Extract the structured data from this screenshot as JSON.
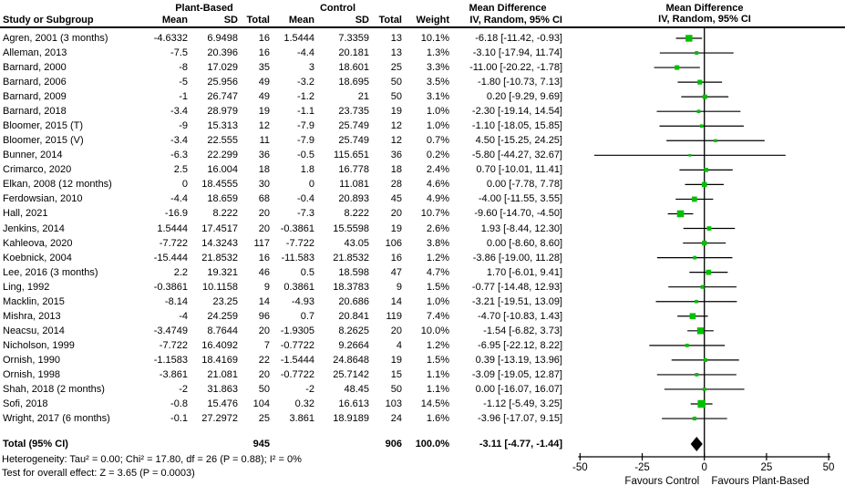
{
  "header": {
    "col_study": "Study or Subgroup",
    "group1": "Plant-Based",
    "group2": "Control",
    "col_mean": "Mean",
    "col_sd": "SD",
    "col_total": "Total",
    "col_weight": "Weight",
    "md_title": "Mean Difference",
    "md_subtitle": "IV, Random, 95% CI"
  },
  "chart_data": {
    "type": "forest",
    "title": "Mean Difference",
    "method": "IV, Random, 95% CI",
    "axis": {
      "min": -50,
      "max": 50,
      "ticks": [
        -50,
        -25,
        0,
        25,
        50
      ],
      "label_left": "Favours Control",
      "label_right": "Favours Plant-Based"
    },
    "colors": {
      "marker": "#00c000",
      "diamond": "#000000",
      "line": "#000000"
    },
    "studies": [
      {
        "study": "Agren, 2001 (3 months)",
        "pb_mean": "-4.6332",
        "pb_sd": "6.9498",
        "pb_total": "16",
        "c_mean": "1.5444",
        "c_sd": "7.3359",
        "c_total": "13",
        "weight": "10.1%",
        "ci_text": "-6.18 [-11.42, -0.93]",
        "est": -6.18,
        "lo": -11.42,
        "hi": -0.93,
        "w": 10.1
      },
      {
        "study": "Alleman, 2013",
        "pb_mean": "-7.5",
        "pb_sd": "20.396",
        "pb_total": "16",
        "c_mean": "-4.4",
        "c_sd": "20.181",
        "c_total": "13",
        "weight": "1.3%",
        "ci_text": "-3.10 [-17.94, 11.74]",
        "est": -3.1,
        "lo": -17.94,
        "hi": 11.74,
        "w": 1.3
      },
      {
        "study": "Barnard, 2000",
        "pb_mean": "-8",
        "pb_sd": "17.029",
        "pb_total": "35",
        "c_mean": "3",
        "c_sd": "18.601",
        "c_total": "25",
        "weight": "3.3%",
        "ci_text": "-11.00 [-20.22, -1.78]",
        "est": -11.0,
        "lo": -20.22,
        "hi": -1.78,
        "w": 3.3
      },
      {
        "study": "Barnard, 2006",
        "pb_mean": "-5",
        "pb_sd": "25.956",
        "pb_total": "49",
        "c_mean": "-3.2",
        "c_sd": "18.695",
        "c_total": "50",
        "weight": "3.5%",
        "ci_text": "-1.80 [-10.73, 7.13]",
        "est": -1.8,
        "lo": -10.73,
        "hi": 7.13,
        "w": 3.5
      },
      {
        "study": "Barnard, 2009",
        "pb_mean": "-1",
        "pb_sd": "26.747",
        "pb_total": "49",
        "c_mean": "-1.2",
        "c_sd": "21",
        "c_total": "50",
        "weight": "3.1%",
        "ci_text": "0.20 [-9.29, 9.69]",
        "est": 0.2,
        "lo": -9.29,
        "hi": 9.69,
        "w": 3.1
      },
      {
        "study": "Barnard, 2018",
        "pb_mean": "-3.4",
        "pb_sd": "28.979",
        "pb_total": "19",
        "c_mean": "-1.1",
        "c_sd": "23.735",
        "c_total": "19",
        "weight": "1.0%",
        "ci_text": "-2.30 [-19.14, 14.54]",
        "est": -2.3,
        "lo": -19.14,
        "hi": 14.54,
        "w": 1.0
      },
      {
        "study": "Bloomer, 2015 (T)",
        "pb_mean": "-9",
        "pb_sd": "15.313",
        "pb_total": "12",
        "c_mean": "-7.9",
        "c_sd": "25.749",
        "c_total": "12",
        "weight": "1.0%",
        "ci_text": "-1.10 [-18.05, 15.85]",
        "est": -1.1,
        "lo": -18.05,
        "hi": 15.85,
        "w": 1.0
      },
      {
        "study": "Bloomer, 2015 (V)",
        "pb_mean": "-3.4",
        "pb_sd": "22.555",
        "pb_total": "11",
        "c_mean": "-7.9",
        "c_sd": "25.749",
        "c_total": "12",
        "weight": "0.7%",
        "ci_text": "4.50 [-15.25, 24.25]",
        "est": 4.5,
        "lo": -15.25,
        "hi": 24.25,
        "w": 0.7
      },
      {
        "study": "Bunner, 2014",
        "pb_mean": "-6.3",
        "pb_sd": "22.299",
        "pb_total": "36",
        "c_mean": "-0.5",
        "c_sd": "115.651",
        "c_total": "36",
        "weight": "0.2%",
        "ci_text": "-5.80 [-44.27, 32.67]",
        "est": -5.8,
        "lo": -44.27,
        "hi": 32.67,
        "w": 0.2
      },
      {
        "study": "Crimarco, 2020",
        "pb_mean": "2.5",
        "pb_sd": "16.004",
        "pb_total": "18",
        "c_mean": "1.8",
        "c_sd": "16.778",
        "c_total": "18",
        "weight": "2.4%",
        "ci_text": "0.70 [-10.01, 11.41]",
        "est": 0.7,
        "lo": -10.01,
        "hi": 11.41,
        "w": 2.4
      },
      {
        "study": "Elkan, 2008 (12 months)",
        "pb_mean": "0",
        "pb_sd": "18.4555",
        "pb_total": "30",
        "c_mean": "0",
        "c_sd": "11.081",
        "c_total": "28",
        "weight": "4.6%",
        "ci_text": "0.00 [-7.78, 7.78]",
        "est": 0.0,
        "lo": -7.78,
        "hi": 7.78,
        "w": 4.6
      },
      {
        "study": "Ferdowsian, 2010",
        "pb_mean": "-4.4",
        "pb_sd": "18.659",
        "pb_total": "68",
        "c_mean": "-0.4",
        "c_sd": "20.893",
        "c_total": "45",
        "weight": "4.9%",
        "ci_text": "-4.00 [-11.55, 3.55]",
        "est": -4.0,
        "lo": -11.55,
        "hi": 3.55,
        "w": 4.9
      },
      {
        "study": "Hall, 2021",
        "pb_mean": "-16.9",
        "pb_sd": "8.222",
        "pb_total": "20",
        "c_mean": "-7.3",
        "c_sd": "8.222",
        "c_total": "20",
        "weight": "10.7%",
        "ci_text": "-9.60 [-14.70, -4.50]",
        "est": -9.6,
        "lo": -14.7,
        "hi": -4.5,
        "w": 10.7
      },
      {
        "study": "Jenkins, 2014",
        "pb_mean": "1.5444",
        "pb_sd": "17.4517",
        "pb_total": "20",
        "c_mean": "-0.3861",
        "c_sd": "15.5598",
        "c_total": "19",
        "weight": "2.6%",
        "ci_text": "1.93 [-8.44, 12.30]",
        "est": 1.93,
        "lo": -8.44,
        "hi": 12.3,
        "w": 2.6
      },
      {
        "study": "Kahleova, 2020",
        "pb_mean": "-7.722",
        "pb_sd": "14.3243",
        "pb_total": "117",
        "c_mean": "-7.722",
        "c_sd": "43.05",
        "c_total": "106",
        "weight": "3.8%",
        "ci_text": "0.00 [-8.60, 8.60]",
        "est": 0.0,
        "lo": -8.6,
        "hi": 8.6,
        "w": 3.8
      },
      {
        "study": "Koebnick, 2004",
        "pb_mean": "-15.444",
        "pb_sd": "21.8532",
        "pb_total": "16",
        "c_mean": "-11.583",
        "c_sd": "21.8532",
        "c_total": "16",
        "weight": "1.2%",
        "ci_text": "-3.86 [-19.00, 11.28]",
        "est": -3.86,
        "lo": -19.0,
        "hi": 11.28,
        "w": 1.2
      },
      {
        "study": "Lee, 2016 (3 months)",
        "pb_mean": "2.2",
        "pb_sd": "19.321",
        "pb_total": "46",
        "c_mean": "0.5",
        "c_sd": "18.598",
        "c_total": "47",
        "weight": "4.7%",
        "ci_text": "1.70 [-6.01, 9.41]",
        "est": 1.7,
        "lo": -6.01,
        "hi": 9.41,
        "w": 4.7
      },
      {
        "study": "Ling, 1992",
        "pb_mean": "-0.3861",
        "pb_sd": "10.1158",
        "pb_total": "9",
        "c_mean": "0.3861",
        "c_sd": "18.3783",
        "c_total": "9",
        "weight": "1.5%",
        "ci_text": "-0.77 [-14.48, 12.93]",
        "est": -0.77,
        "lo": -14.48,
        "hi": 12.93,
        "w": 1.5
      },
      {
        "study": "Macklin, 2015",
        "pb_mean": "-8.14",
        "pb_sd": "23.25",
        "pb_total": "14",
        "c_mean": "-4.93",
        "c_sd": "20.686",
        "c_total": "14",
        "weight": "1.0%",
        "ci_text": "-3.21 [-19.51, 13.09]",
        "est": -3.21,
        "lo": -19.51,
        "hi": 13.09,
        "w": 1.0
      },
      {
        "study": "Mishra, 2013",
        "pb_mean": "-4",
        "pb_sd": "24.259",
        "pb_total": "96",
        "c_mean": "0.7",
        "c_sd": "20.841",
        "c_total": "119",
        "weight": "7.4%",
        "ci_text": "-4.70 [-10.83, 1.43]",
        "est": -4.7,
        "lo": -10.83,
        "hi": 1.43,
        "w": 7.4
      },
      {
        "study": "Neacsu, 2014",
        "pb_mean": "-3.4749",
        "pb_sd": "8.7644",
        "pb_total": "20",
        "c_mean": "-1.9305",
        "c_sd": "8.2625",
        "c_total": "20",
        "weight": "10.0%",
        "ci_text": "-1.54 [-6.82, 3.73]",
        "est": -1.54,
        "lo": -6.82,
        "hi": 3.73,
        "w": 10.0
      },
      {
        "study": "Nicholson, 1999",
        "pb_mean": "-7.722",
        "pb_sd": "16.4092",
        "pb_total": "7",
        "c_mean": "-0.7722",
        "c_sd": "9.2664",
        "c_total": "4",
        "weight": "1.2%",
        "ci_text": "-6.95 [-22.12, 8.22]",
        "est": -6.95,
        "lo": -22.12,
        "hi": 8.22,
        "w": 1.2
      },
      {
        "study": "Ornish, 1990",
        "pb_mean": "-1.1583",
        "pb_sd": "18.4169",
        "pb_total": "22",
        "c_mean": "-1.5444",
        "c_sd": "24.8648",
        "c_total": "19",
        "weight": "1.5%",
        "ci_text": "0.39 [-13.19, 13.96]",
        "est": 0.39,
        "lo": -13.19,
        "hi": 13.96,
        "w": 1.5
      },
      {
        "study": "Ornish, 1998",
        "pb_mean": "-3.861",
        "pb_sd": "21.081",
        "pb_total": "20",
        "c_mean": "-0.7722",
        "c_sd": "25.7142",
        "c_total": "15",
        "weight": "1.1%",
        "ci_text": "-3.09 [-19.05, 12.87]",
        "est": -3.09,
        "lo": -19.05,
        "hi": 12.87,
        "w": 1.1
      },
      {
        "study": "Shah, 2018 (2 months)",
        "pb_mean": "-2",
        "pb_sd": "31.863",
        "pb_total": "50",
        "c_mean": "-2",
        "c_sd": "48.45",
        "c_total": "50",
        "weight": "1.1%",
        "ci_text": "0.00 [-16.07, 16.07]",
        "est": 0.0,
        "lo": -16.07,
        "hi": 16.07,
        "w": 1.1
      },
      {
        "study": "Sofi, 2018",
        "pb_mean": "-0.8",
        "pb_sd": "15.476",
        "pb_total": "104",
        "c_mean": "0.32",
        "c_sd": "16.613",
        "c_total": "103",
        "weight": "14.5%",
        "ci_text": "-1.12 [-5.49, 3.25]",
        "est": -1.12,
        "lo": -5.49,
        "hi": 3.25,
        "w": 14.5
      },
      {
        "study": "Wright, 2017 (6 months)",
        "pb_mean": "-0.1",
        "pb_sd": "27.2972",
        "pb_total": "25",
        "c_mean": "3.861",
        "c_sd": "18.9189",
        "c_total": "24",
        "weight": "1.6%",
        "ci_text": "-3.96 [-17.07, 9.15]",
        "est": -3.96,
        "lo": -17.07,
        "hi": 9.15,
        "w": 1.6
      }
    ],
    "total": {
      "label": "Total (95% CI)",
      "pb_total": "945",
      "c_total": "906",
      "weight": "100.0%",
      "ci_text": "-3.11 [-4.77, -1.44]",
      "est": -3.11,
      "lo": -4.77,
      "hi": -1.44
    },
    "heterogeneity": "Heterogeneity: Tau² = 0.00; Chi² = 17.80, df = 26 (P = 0.88); I² = 0%",
    "overall_effect": "Test for overall effect: Z = 3.65 (P = 0.0003)"
  }
}
